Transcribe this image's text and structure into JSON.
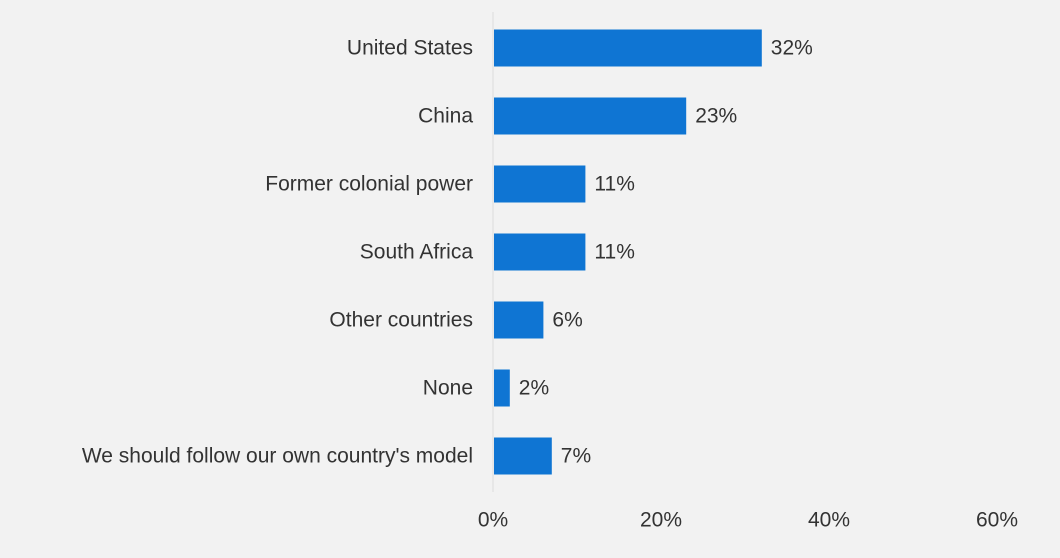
{
  "colors": {
    "background": "#f2f2f2",
    "bar": "#0f75d3",
    "text": "#333333",
    "axis_line": "#dcdcdc"
  },
  "chart_data": {
    "type": "bar",
    "orientation": "horizontal",
    "categories": [
      "United States",
      "China",
      "Former colonial power",
      "South Africa",
      "Other countries",
      "None",
      "We should follow our own country's model"
    ],
    "values": [
      32,
      23,
      11,
      11,
      6,
      2,
      7
    ],
    "value_labels": [
      "32%",
      "23%",
      "11%",
      "11%",
      "6%",
      "2%",
      "7%"
    ],
    "xlim": [
      0,
      60
    ],
    "xticks": [
      0,
      20,
      40,
      60
    ],
    "xtick_labels": [
      "0%",
      "20%",
      "40%",
      "60%"
    ],
    "grid": false,
    "legend": "none"
  }
}
